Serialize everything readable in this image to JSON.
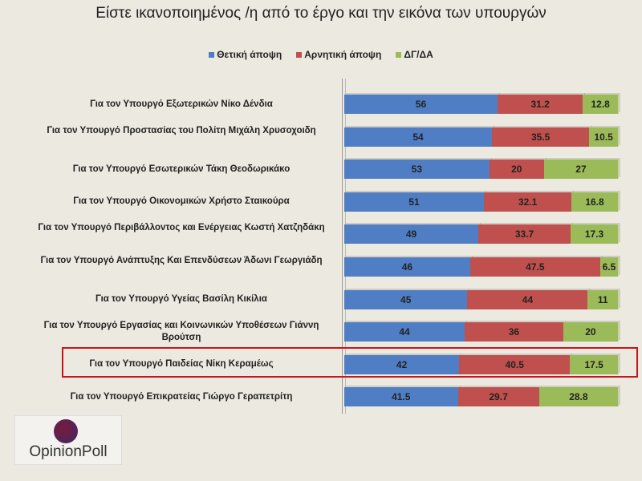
{
  "chart_data": {
    "type": "bar",
    "orientation": "horizontal",
    "stacked": true,
    "title": "Είστε ικανοποιημένος /η από το έργο και την εικόνα των υπουργών",
    "legend_position": "top",
    "categories": [
      "Για τον Υπουργό Εξωτερικών Νίκο Δένδια",
      "Για τον Υπουργό Προστασίας του Πολίτη Μιχάλη Χρυσοχοιδη",
      "Για τον Υπουργό Εσωτερικών Τάκη Θεοδωρικάκο",
      "Για τον Υπουργό Οικονομικών Χρήστο Σταικούρα",
      "Για τον Υπουργό  Περιβάλλοντος και Ενέργειας Κωστή Χατζηδάκη",
      "Για τον Υπουργό Ανάπτυξης Και Επενδύσεων Άδωνι Γεωργιάδη",
      "Για τον Υπουργό Υγείας Βασίλη Κικίλια",
      "Για τον Υπουργό Εργασίας και Κοινωνικών Υποθέσεων Γιάννη Βρούτση",
      "Για τον Υπουργό Παιδείας Νίκη Κεραμέως",
      "Για τον Υπουργό Επικρατείας Γιώργο Γεραπετρίτη"
    ],
    "series": [
      {
        "name": "Θετική άποψη",
        "color": "#4f7ec4",
        "values": [
          56,
          54,
          53,
          51,
          49,
          46,
          45,
          44,
          42,
          41.5
        ]
      },
      {
        "name": "Αρνητική άποψη",
        "color": "#c0504d",
        "values": [
          31.2,
          35.5,
          20,
          32.1,
          33.7,
          47.5,
          44,
          36,
          40.5,
          29.7
        ]
      },
      {
        "name": "ΔΓ/ΔΑ",
        "color": "#9bbb59",
        "values": [
          12.8,
          10.5,
          27,
          16.8,
          17.3,
          6.5,
          11,
          20,
          17.5,
          28.8
        ]
      }
    ],
    "xlim": [
      0,
      100
    ],
    "highlighted_category": "Για τον Υπουργό Παιδείας Νίκη Κεραμέως",
    "highlight_color": "#c8141b"
  },
  "logo": {
    "text": "OpinionPoll"
  }
}
